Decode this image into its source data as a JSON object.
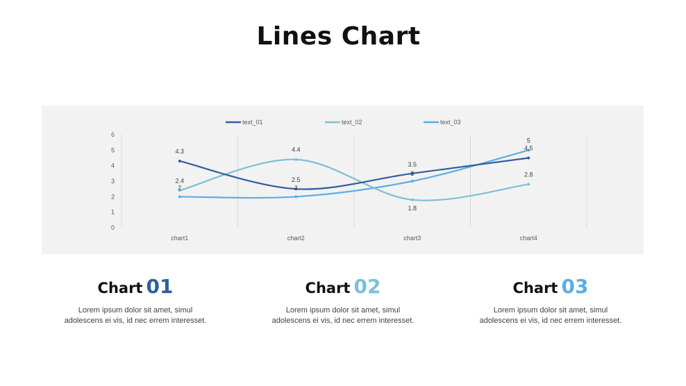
{
  "page": {
    "title": "Lines Chart"
  },
  "chart_data": {
    "type": "line",
    "categories": [
      "chart1",
      "chart2",
      "chart3",
      "chart4"
    ],
    "ylim": [
      0,
      6
    ],
    "yticks": [
      "0",
      "1",
      "2",
      "3",
      "4",
      "5",
      "6"
    ],
    "grid": "vertical",
    "legend_position": "top",
    "series": [
      {
        "name": "text_01",
        "values": [
          4.3,
          2.5,
          3.5,
          4.5
        ],
        "color": "#2e5f9e"
      },
      {
        "name": "text_02",
        "values": [
          2.4,
          4.4,
          1.8,
          2.8
        ],
        "color": "#7cbfd9"
      },
      {
        "name": "text_03",
        "values": [
          2,
          2,
          3,
          5
        ],
        "color": "#5baee3"
      }
    ]
  },
  "cards": [
    {
      "label": "Chart",
      "number": "01",
      "number_color": "#2e5f9e",
      "description": "Lorem  ipsum dolor  sit amet,  simul\nadolescens ei vis, id nec errem  interesset."
    },
    {
      "label": "Chart",
      "number": "02",
      "number_color": "#7cbfd9",
      "description": "Lorem  ipsum dolor  sit amet,  simul\nadolescens ei vis, id nec errem  interesset."
    },
    {
      "label": "Chart",
      "number": "03",
      "number_color": "#5baee3",
      "description": "Lorem  ipsum dolor  sit amet,  simul\nadolescens ei vis, id nec errem  interesset."
    }
  ]
}
